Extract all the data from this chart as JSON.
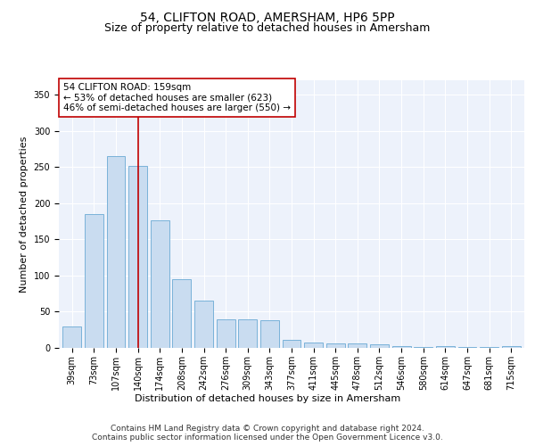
{
  "title": "54, CLIFTON ROAD, AMERSHAM, HP6 5PP",
  "subtitle": "Size of property relative to detached houses in Amersham",
  "xlabel": "Distribution of detached houses by size in Amersham",
  "ylabel": "Number of detached properties",
  "categories": [
    "39sqm",
    "73sqm",
    "107sqm",
    "140sqm",
    "174sqm",
    "208sqm",
    "242sqm",
    "276sqm",
    "309sqm",
    "343sqm",
    "377sqm",
    "411sqm",
    "445sqm",
    "478sqm",
    "512sqm",
    "546sqm",
    "580sqm",
    "614sqm",
    "647sqm",
    "681sqm",
    "715sqm"
  ],
  "values": [
    30,
    185,
    265,
    252,
    176,
    95,
    65,
    39,
    39,
    38,
    11,
    8,
    6,
    6,
    5,
    3,
    1,
    3,
    1,
    1,
    2
  ],
  "bar_color": "#c9dcf0",
  "bar_edge_color": "#6aaad4",
  "vline_x": 3,
  "vline_color": "#c00000",
  "annotation_text": "54 CLIFTON ROAD: 159sqm\n← 53% of detached houses are smaller (623)\n46% of semi-detached houses are larger (550) →",
  "annotation_box_color": "#ffffff",
  "annotation_box_edge_color": "#c00000",
  "footer_line1": "Contains HM Land Registry data © Crown copyright and database right 2024.",
  "footer_line2": "Contains public sector information licensed under the Open Government Licence v3.0.",
  "ylim": [
    0,
    370
  ],
  "background_color": "#edf2fb",
  "title_fontsize": 10,
  "subtitle_fontsize": 9,
  "axis_label_fontsize": 8,
  "tick_fontsize": 7,
  "footer_fontsize": 6.5,
  "annotation_fontsize": 7.5
}
